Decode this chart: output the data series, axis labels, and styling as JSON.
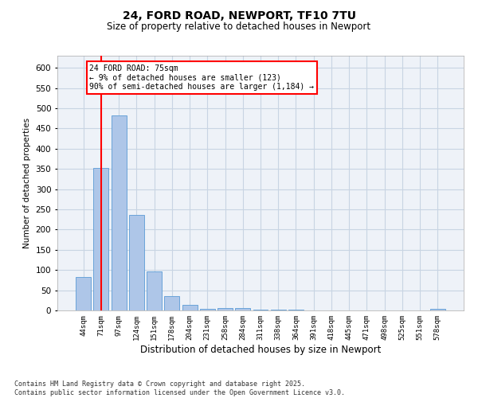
{
  "title1": "24, FORD ROAD, NEWPORT, TF10 7TU",
  "title2": "Size of property relative to detached houses in Newport",
  "xlabel": "Distribution of detached houses by size in Newport",
  "ylabel": "Number of detached properties",
  "categories": [
    "44sqm",
    "71sqm",
    "97sqm",
    "124sqm",
    "151sqm",
    "178sqm",
    "204sqm",
    "231sqm",
    "258sqm",
    "284sqm",
    "311sqm",
    "338sqm",
    "364sqm",
    "391sqm",
    "418sqm",
    "445sqm",
    "471sqm",
    "498sqm",
    "525sqm",
    "551sqm",
    "578sqm"
  ],
  "values": [
    83,
    352,
    483,
    236,
    96,
    35,
    14,
    4,
    6,
    6,
    2,
    1,
    1,
    0,
    0,
    0,
    0,
    0,
    0,
    0,
    3
  ],
  "bar_color": "#aec6e8",
  "bar_edge_color": "#5b9bd5",
  "grid_color": "#c8d4e3",
  "bg_color": "#eef2f8",
  "vline_x": 1,
  "vline_color": "red",
  "annotation_text": "24 FORD ROAD: 75sqm\n← 9% of detached houses are smaller (123)\n90% of semi-detached houses are larger (1,184) →",
  "annotation_box_color": "white",
  "annotation_box_edge": "red",
  "footer": "Contains HM Land Registry data © Crown copyright and database right 2025.\nContains public sector information licensed under the Open Government Licence v3.0.",
  "ylim": [
    0,
    630
  ],
  "yticks": [
    0,
    50,
    100,
    150,
    200,
    250,
    300,
    350,
    400,
    450,
    500,
    550,
    600
  ]
}
